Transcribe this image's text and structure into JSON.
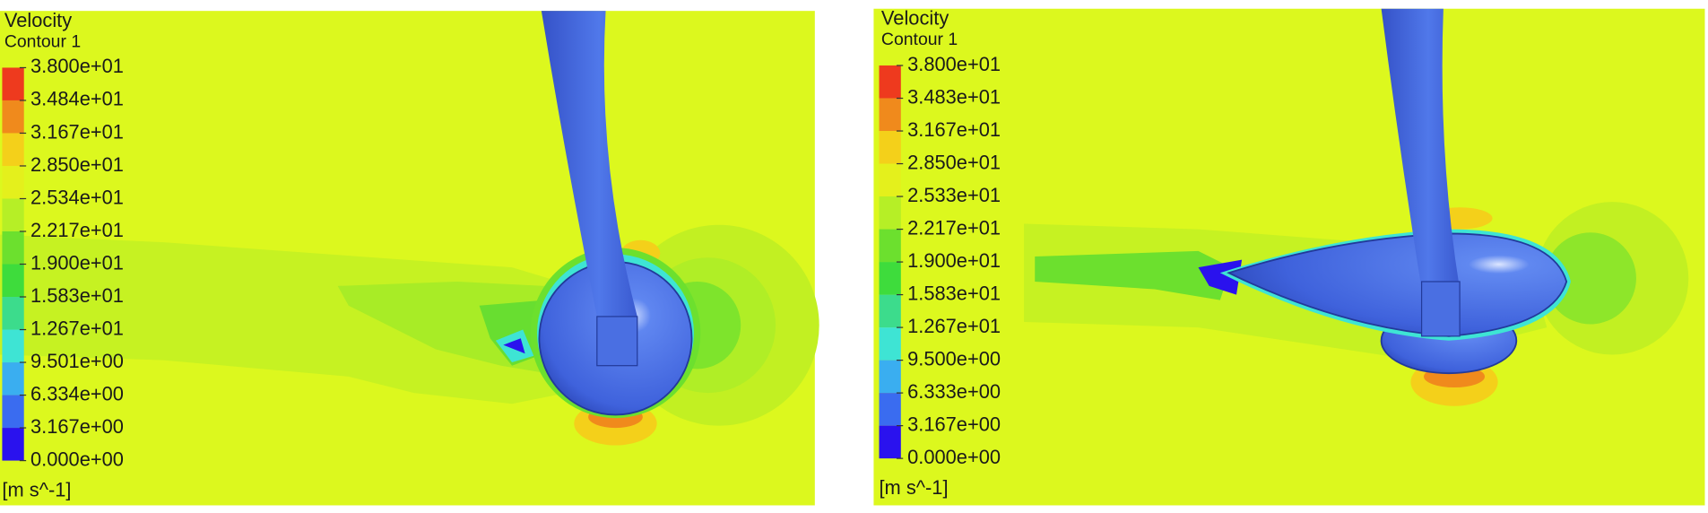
{
  "panels": [
    {
      "title": "Velocity",
      "subtitle": "Contour 1",
      "legend": {
        "labels": [
          "3.800e+01",
          "3.484e+01",
          "3.167e+01",
          "2.850e+01",
          "2.534e+01",
          "2.217e+01",
          "1.900e+01",
          "1.583e+01",
          "1.267e+01",
          "9.501e+00",
          "6.334e+00",
          "3.167e+00",
          "0.000e+00"
        ],
        "colors": [
          "#ee3a1e",
          "#f08a1c",
          "#f4d01a",
          "#e4f01c",
          "#b6ef26",
          "#6ce02e",
          "#3edc3c",
          "#3cdc8c",
          "#3ee4d4",
          "#3aaef0",
          "#3a6cf0",
          "#2a12ee"
        ]
      },
      "unit": "[m s^-1]"
    },
    {
      "title": "Velocity",
      "subtitle": "Contour 1",
      "legend": {
        "labels": [
          "3.800e+01",
          "3.483e+01",
          "3.167e+01",
          "2.850e+01",
          "2.533e+01",
          "2.217e+01",
          "1.900e+01",
          "1.583e+01",
          "1.267e+01",
          "9.500e+00",
          "6.333e+00",
          "3.167e+00",
          "0.000e+00"
        ],
        "colors": [
          "#ee3a1e",
          "#f08a1c",
          "#f4d01a",
          "#e4f01c",
          "#b6ef26",
          "#6ce02e",
          "#3edc3c",
          "#3cdc8c",
          "#3ee4d4",
          "#3aaef0",
          "#3a6cf0",
          "#2a12ee"
        ]
      },
      "unit": "[m s^-1]"
    }
  ]
}
